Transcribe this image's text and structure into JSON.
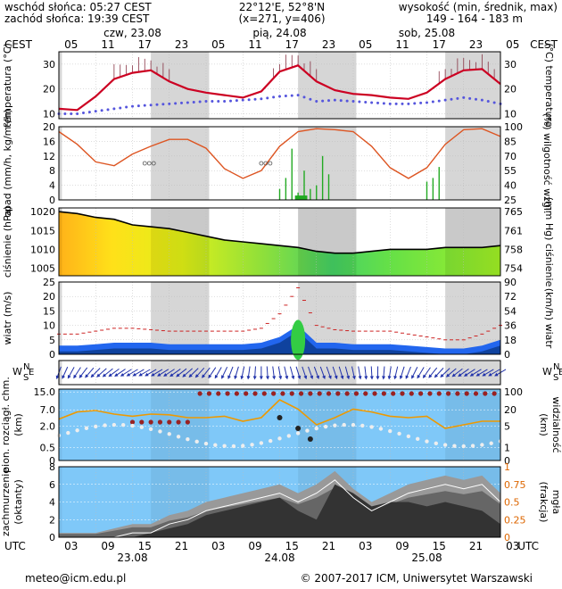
{
  "header": {
    "sunrise": "wschód słońca: 05:27 CEST",
    "sunset": "zachód słońca: 19:39 CEST",
    "coords": "22°12'E, 52°8'N",
    "grid": "(x=271, y=406)",
    "elev_title": "wysokość (min, średnik, max)",
    "elev_values": "149 - 164 - 183 m"
  },
  "top_axis": {
    "tz": "CEST",
    "days": [
      "czw, 23.08",
      "pią, 24.08",
      "sob, 25.08"
    ],
    "hours": [
      "05",
      "11",
      "17",
      "23",
      "05",
      "11",
      "17",
      "23",
      "05",
      "11",
      "17",
      "23",
      "05"
    ]
  },
  "bottom_axis": {
    "tz": "UTC",
    "hours": [
      "03",
      "09",
      "15",
      "21",
      "03",
      "09",
      "15",
      "21",
      "03",
      "09",
      "15",
      "21",
      "03"
    ],
    "dates": [
      "23.08",
      "24.08",
      "25.08"
    ]
  },
  "footer": {
    "email": "meteo@icm.edu.pl",
    "copyright": "© 2007-2017 ICM, Uniwersytet Warszawski"
  },
  "colors": {
    "night": "#d6d6d6",
    "temp": "#cc0022",
    "dew": "#5555dd",
    "humidity": "#dd5522",
    "precip": "#22aa22",
    "pressure": "#000000",
    "sky": "#7fc8f8",
    "orange": "#ee9900"
  },
  "chart_data": [
    {
      "type": "line",
      "name": "temperature",
      "ylabel_left": "temperatura (°C)",
      "ylabel_right": "(°C) temperatura",
      "ylim": [
        8,
        35
      ],
      "yticks": [
        "30",
        "20",
        "10"
      ],
      "x_hours": [
        0,
        3,
        6,
        9,
        12,
        15,
        18,
        21,
        24,
        27,
        30,
        33,
        36,
        39,
        42,
        45,
        48,
        51,
        54,
        57,
        60,
        63,
        66,
        69,
        72
      ],
      "series": [
        {
          "name": "temperature",
          "values": [
            12,
            11.5,
            17,
            24,
            26.5,
            27.5,
            23,
            20,
            18.5,
            17.5,
            16.5,
            19,
            27,
            29.5,
            23,
            19.5,
            18,
            17.5,
            16.5,
            16,
            18.5,
            24,
            27.5,
            28,
            22
          ]
        },
        {
          "name": "dew",
          "values": [
            10,
            10,
            11,
            12,
            13,
            13.5,
            14,
            14.5,
            15,
            15,
            15.5,
            16,
            17,
            17.5,
            15,
            15.5,
            15,
            14.5,
            14,
            14,
            14.5,
            15.5,
            16.5,
            15.5,
            14
          ]
        }
      ]
    },
    {
      "type": "bar",
      "name": "precipitation",
      "ylabel_left": "opad (mm/h, kg/m²/h)",
      "ylabel_right": "(%) wilgotność wzgl.",
      "ylim_left": [
        0,
        20
      ],
      "yticks_left": [
        "20",
        "16",
        "12",
        "8",
        "4",
        "0"
      ],
      "ylim_right": [
        25,
        100
      ],
      "yticks_right": [
        "100",
        "85",
        "70",
        "55",
        "40",
        "25"
      ],
      "humidity": [
        95,
        82,
        64,
        60,
        72,
        80,
        87,
        87,
        78,
        57,
        47,
        55,
        80,
        95,
        98,
        97,
        95,
        80,
        58,
        47,
        58,
        82,
        97,
        98,
        90
      ],
      "precip_hours": [
        36,
        37,
        38,
        39,
        40,
        41,
        42,
        43,
        44,
        60,
        61,
        62
      ],
      "precip_values": [
        3,
        6,
        14,
        2,
        8,
        3,
        4,
        12,
        7,
        5,
        6,
        9
      ]
    },
    {
      "type": "area",
      "name": "pressure",
      "ylabel_left": "ciśnienie (hPa)",
      "ylabel_right": "(mm Hg) ciśnienie",
      "ylim_left": [
        1003,
        1021
      ],
      "yticks_left": [
        "1020",
        "1015",
        "1010",
        "1005"
      ],
      "yticks_right": [
        "765",
        "761",
        "758",
        "754"
      ],
      "values": [
        1020,
        1019.5,
        1018.5,
        1018,
        1016.5,
        1016,
        1015.5,
        1014.5,
        1013.5,
        1012.5,
        1012,
        1011.5,
        1011,
        1010.5,
        1009.5,
        1009,
        1009,
        1009.5,
        1010,
        1010,
        1010,
        1010.5,
        1010.5,
        1010.5,
        1011
      ]
    },
    {
      "type": "area",
      "name": "wind",
      "ylabel_left": "wiatr (m/s)",
      "ylabel_right": "(km/h) wiatr",
      "ylim_left": [
        0,
        25
      ],
      "yticks_left": [
        "25",
        "20",
        "15",
        "10",
        "5",
        "0"
      ],
      "yticks_right": [
        "90",
        "72",
        "54",
        "36",
        "18",
        "0"
      ],
      "speed": [
        3,
        3,
        3.5,
        4,
        4,
        4,
        3.5,
        3.5,
        3.5,
        3.5,
        3.5,
        4,
        6,
        10,
        4,
        4,
        3.5,
        3.5,
        3.5,
        3,
        2.5,
        2,
        2,
        3,
        5
      ],
      "gust": [
        7,
        7,
        8,
        9,
        9,
        8.5,
        8,
        8,
        8,
        8,
        8,
        9,
        14,
        23,
        10,
        8.5,
        8,
        8,
        8,
        7,
        6,
        5,
        5,
        7,
        10
      ]
    },
    {
      "type": "line",
      "name": "cloud_base",
      "ylabel_left": "pion. rozciągł. chm. (km)",
      "ylabel_right": "(km) widzialność",
      "yticks_left": [
        "15.0",
        "7.0",
        "2.0",
        "0.5",
        "0"
      ],
      "yticks_right": [
        "100",
        "20",
        "5",
        "1",
        "0"
      ],
      "visibility": [
        0.58,
        0.68,
        0.7,
        0.65,
        0.62,
        0.65,
        0.64,
        0.6,
        0.6,
        0.62,
        0.55,
        0.6,
        0.85,
        0.72,
        0.5,
        0.6,
        0.72,
        0.68,
        0.62,
        0.6,
        0.62,
        0.45,
        0.5,
        0.55,
        0.55
      ]
    },
    {
      "type": "area",
      "name": "cloud_cover",
      "ylabel_left": "zachmurzenie (oktanty)",
      "ylabel_right": "(frakcja) mgła",
      "ylim_left": [
        0,
        8
      ],
      "yticks_left": [
        "8",
        "6",
        "4",
        "2",
        "0"
      ],
      "yticks_right": [
        "1",
        "0.75",
        "0.5",
        "0.25",
        "0"
      ],
      "total": [
        0.5,
        0.5,
        0.5,
        1,
        1.5,
        1.5,
        2.5,
        3,
        4,
        4.5,
        5,
        5.5,
        6,
        5,
        6,
        7.5,
        5.5,
        4,
        5,
        6,
        6.5,
        7,
        6.5,
        7,
        5
      ],
      "low": [
        0,
        0,
        0,
        0,
        0,
        0.5,
        1,
        1.5,
        2.5,
        3,
        3.5,
        4,
        4.5,
        3,
        2,
        6,
        5,
        3.5,
        4,
        4,
        3.5,
        4,
        3.5,
        3,
        1.5
      ]
    }
  ]
}
